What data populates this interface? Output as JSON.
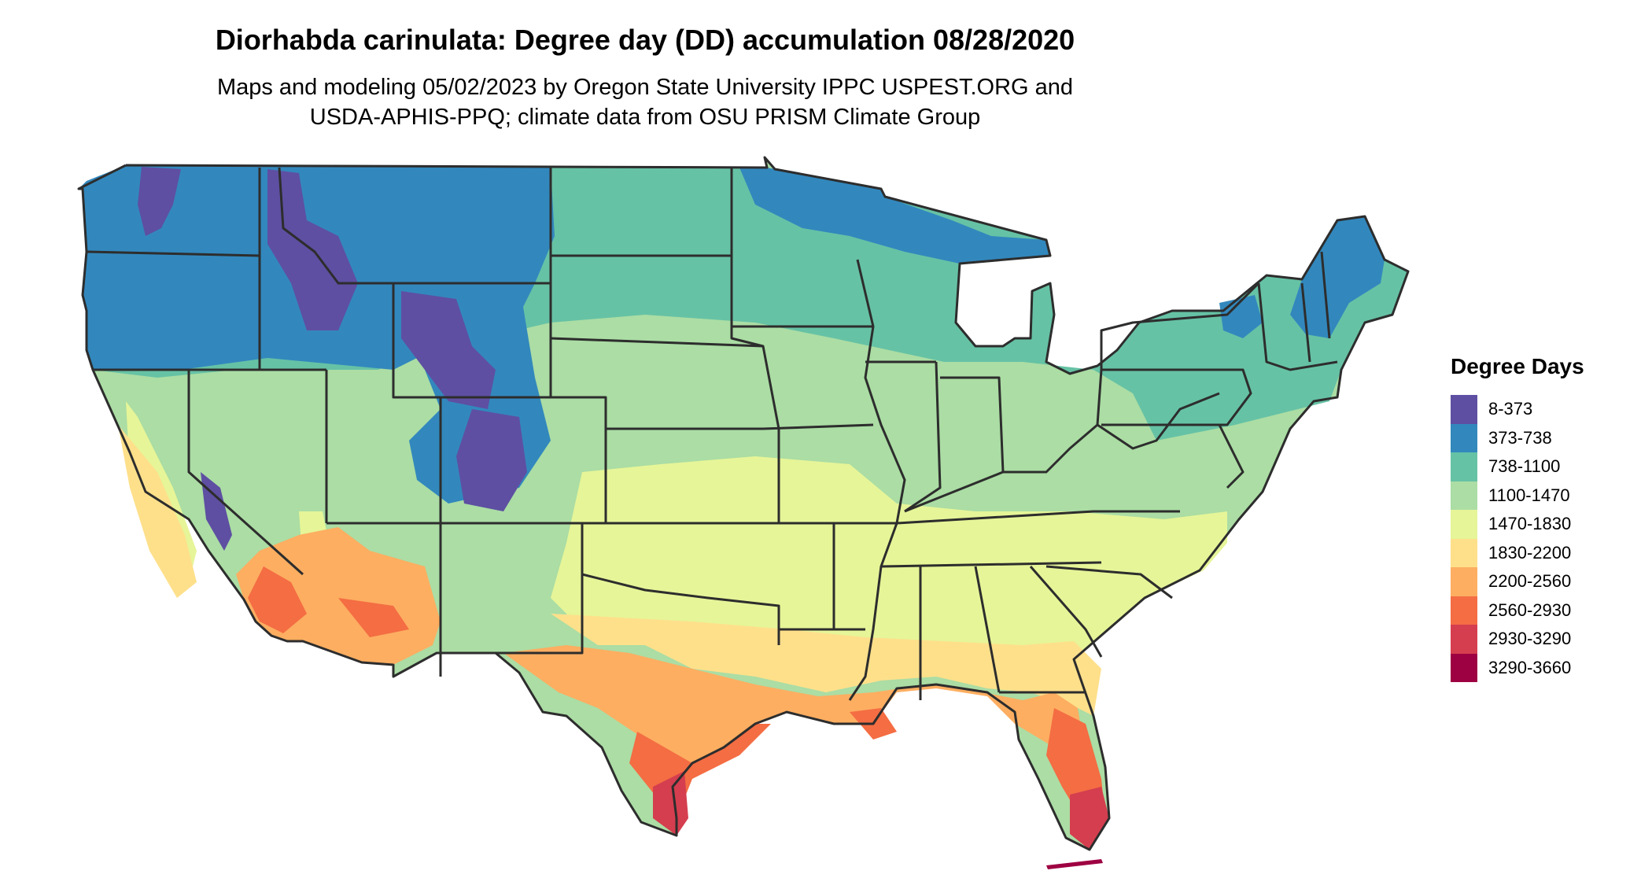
{
  "title": "Diorhabda carinulata: Degree day (DD) accumulation 08/28/2020",
  "subtitle_lines": [
    "Maps and modeling 05/02/2023 by Oregon State University IPPC USPEST.ORG and",
    "USDA-APHIS-PPQ; climate data from OSU PRISM Climate Group"
  ],
  "legend": {
    "title": "Degree Days",
    "items": [
      {
        "label": "8-373",
        "color": "#5e4fa2"
      },
      {
        "label": "373-738",
        "color": "#3288bd"
      },
      {
        "label": "738-1100",
        "color": "#66c2a5"
      },
      {
        "label": "1100-1470",
        "color": "#abdda4"
      },
      {
        "label": "1470-1830",
        "color": "#e6f598"
      },
      {
        "label": "1830-2200",
        "color": "#fee08b"
      },
      {
        "label": "2200-2560",
        "color": "#fdae61"
      },
      {
        "label": "2560-2930",
        "color": "#f46d43"
      },
      {
        "label": "2930-3290",
        "color": "#d53e4f"
      },
      {
        "label": "3290-3660",
        "color": "#9e0142"
      }
    ]
  },
  "colors": {
    "border": "#2d2d2d",
    "background": "#ffffff"
  }
}
